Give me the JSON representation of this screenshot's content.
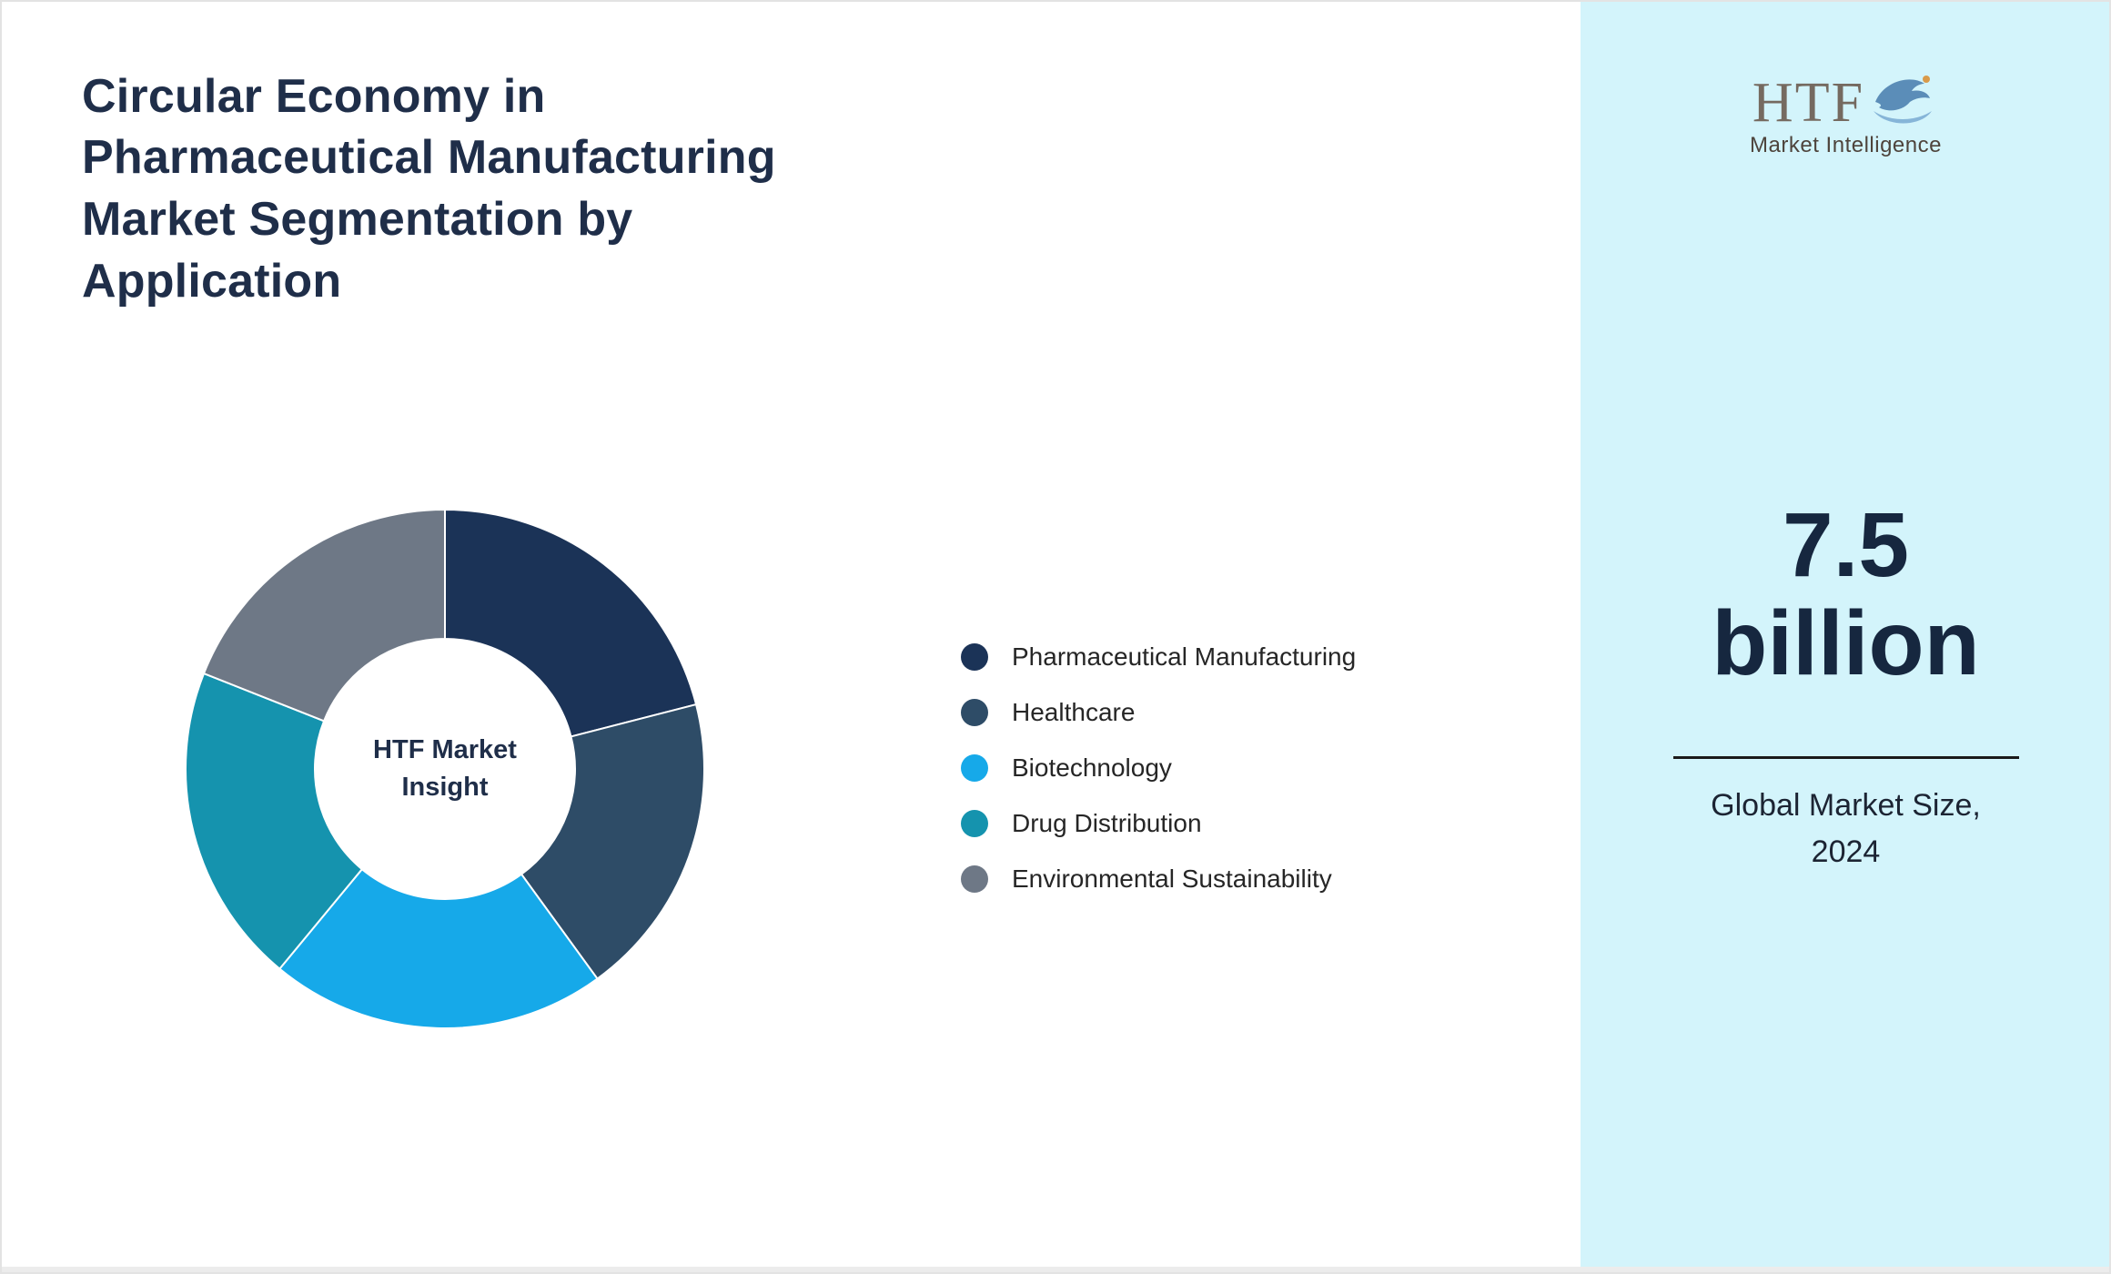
{
  "title": "Circular Economy in Pharmaceutical Manufacturing Market Segmentation by Application",
  "title_lines": [
    "Circular Economy in",
    "Pharmaceutical Manufacturing",
    "Market Segmentation by",
    "Application"
  ],
  "brand": {
    "name": "HTF",
    "tagline": "Market Intelligence"
  },
  "chart_data": {
    "type": "pie",
    "subtype": "donut",
    "title": "Circular Economy in Pharmaceutical Manufacturing Market Segmentation by Application",
    "center_label": "HTF Market Insight",
    "center_label_lines": [
      "HTF Market",
      "Insight"
    ],
    "legend_position": "right",
    "units": "percent (estimated from arc angles, no numeric labels shown)",
    "segments": [
      {
        "label": "Pharmaceutical Manufacturing",
        "value": 21,
        "color": "#1b3357"
      },
      {
        "label": "Healthcare",
        "value": 19,
        "color": "#2e4c67"
      },
      {
        "label": "Biotechnology",
        "value": 21,
        "color": "#16a9e9"
      },
      {
        "label": "Drug Distribution",
        "value": 20,
        "color": "#1593ae"
      },
      {
        "label": "Environmental Sustainability",
        "value": 19,
        "color": "#6e7886"
      }
    ]
  },
  "stat_panel": {
    "value": "7.5",
    "unit": "billion",
    "caption_line1": "Global Market Size,",
    "caption_line2": "2024",
    "background": "#d3f4fb"
  }
}
